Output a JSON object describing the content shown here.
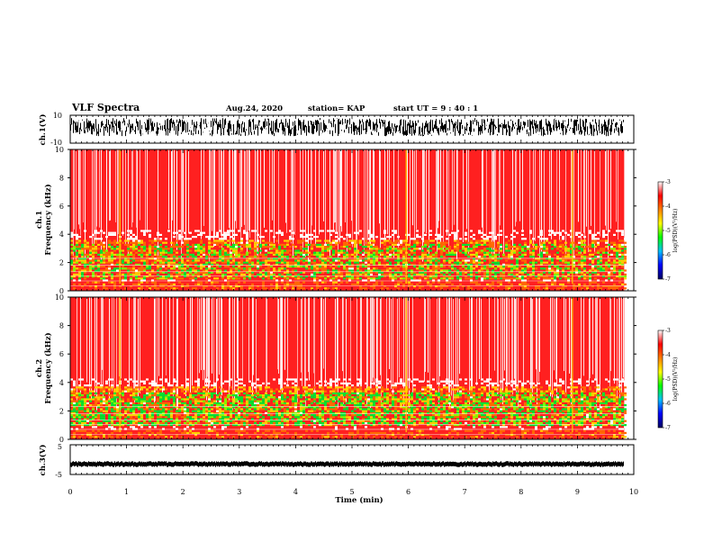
{
  "header": {
    "title": "VLF Spectra",
    "date": "Aug.24, 2020",
    "station": "station= KAP",
    "start": "start  UT =   9 : 40 : 1"
  },
  "chart_data": [
    {
      "type": "line",
      "id": "ch1-waveform",
      "ylabel": "ch.1(V)",
      "ylim": [
        -10,
        10
      ],
      "yticklabels": [
        "10",
        "-10"
      ],
      "description_values": "dense oscillating voltage trace, roughly between -5 and +8 V",
      "xlim": [
        0,
        10
      ]
    },
    {
      "type": "heatmap",
      "id": "ch1-spectrogram",
      "ylabel": "ch.1\nFrequency (kHz)",
      "ylabel_line1": "ch.1",
      "ylabel_line2": "Frequency (kHz)",
      "ylim": [
        0,
        10
      ],
      "yticks": [
        0,
        2,
        4,
        6,
        8,
        10
      ],
      "xlim": [
        0,
        10
      ],
      "data_end_min": 9.83,
      "colorbar": {
        "label": "log(PSD)(V²/Hz)",
        "range": [
          -7,
          -3
        ],
        "ticks": [
          "-3",
          "-4",
          "-5",
          "-6",
          "-7"
        ]
      }
    },
    {
      "type": "heatmap",
      "id": "ch2-spectrogram",
      "ylabel": "ch.2\nFrequency (kHz)",
      "ylabel_line1": "ch.2",
      "ylabel_line2": "Frequency (kHz)",
      "ylim": [
        0,
        10
      ],
      "yticks": [
        0,
        2,
        4,
        6,
        8,
        10
      ],
      "xlim": [
        0,
        10
      ],
      "data_end_min": 9.83,
      "colorbar": {
        "label": "log(PSD)(V²/Hz)",
        "range": [
          -7,
          -3
        ],
        "ticks": [
          "-3",
          "-4",
          "-5",
          "-6",
          "-7"
        ]
      }
    },
    {
      "type": "line",
      "id": "ch3-waveform",
      "ylabel": "ch.3(V)",
      "ylim": [
        -5,
        5
      ],
      "yticklabels": [
        "5",
        "-5"
      ],
      "approx_level": -1.5,
      "xlim": [
        0,
        10
      ]
    }
  ],
  "xaxis": {
    "label": "Time (min)",
    "ticks": [
      "0",
      "1",
      "2",
      "3",
      "4",
      "5",
      "6",
      "7",
      "8",
      "9",
      "10"
    ]
  },
  "colors": {
    "colormap": [
      "#000060",
      "#0000ff",
      "#00b0ff",
      "#00ff00",
      "#ffff00",
      "#ff8000",
      "#ff0000",
      "#ffffff"
    ]
  }
}
